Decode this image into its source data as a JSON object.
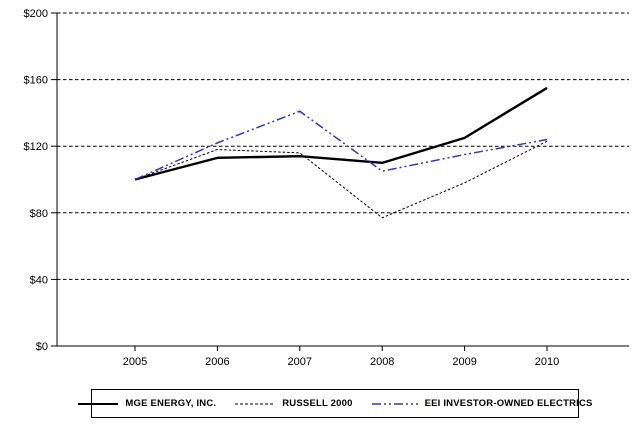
{
  "chart_data": {
    "type": "line",
    "title": "",
    "xlabel": "",
    "ylabel": "",
    "x_labels": [
      "2005",
      "2006",
      "2007",
      "2008",
      "2009",
      "2010"
    ],
    "y_tick_labels": [
      "$0",
      "$40",
      "$80",
      "$120",
      "$160",
      "$200"
    ],
    "y_tick_values": [
      0,
      40,
      80,
      120,
      160,
      200
    ],
    "ylim": [
      0,
      200
    ],
    "grid": "horizontal-dashed",
    "legend_position": "bottom",
    "series": [
      {
        "name": "MGE ENERGY, INC.",
        "values": [
          100,
          113,
          114,
          110,
          125,
          155
        ],
        "color": "#000000",
        "style": "solid"
      },
      {
        "name": "RUSSELL 2000",
        "values": [
          100,
          118,
          116,
          77,
          98,
          123
        ],
        "color": "#000000",
        "style": "dotted"
      },
      {
        "name": "EEI INVESTOR-OWNED ELECTRICS",
        "values": [
          100,
          122,
          141,
          105,
          115,
          124
        ],
        "color": "#3333cc",
        "style": "dashdot"
      }
    ]
  }
}
